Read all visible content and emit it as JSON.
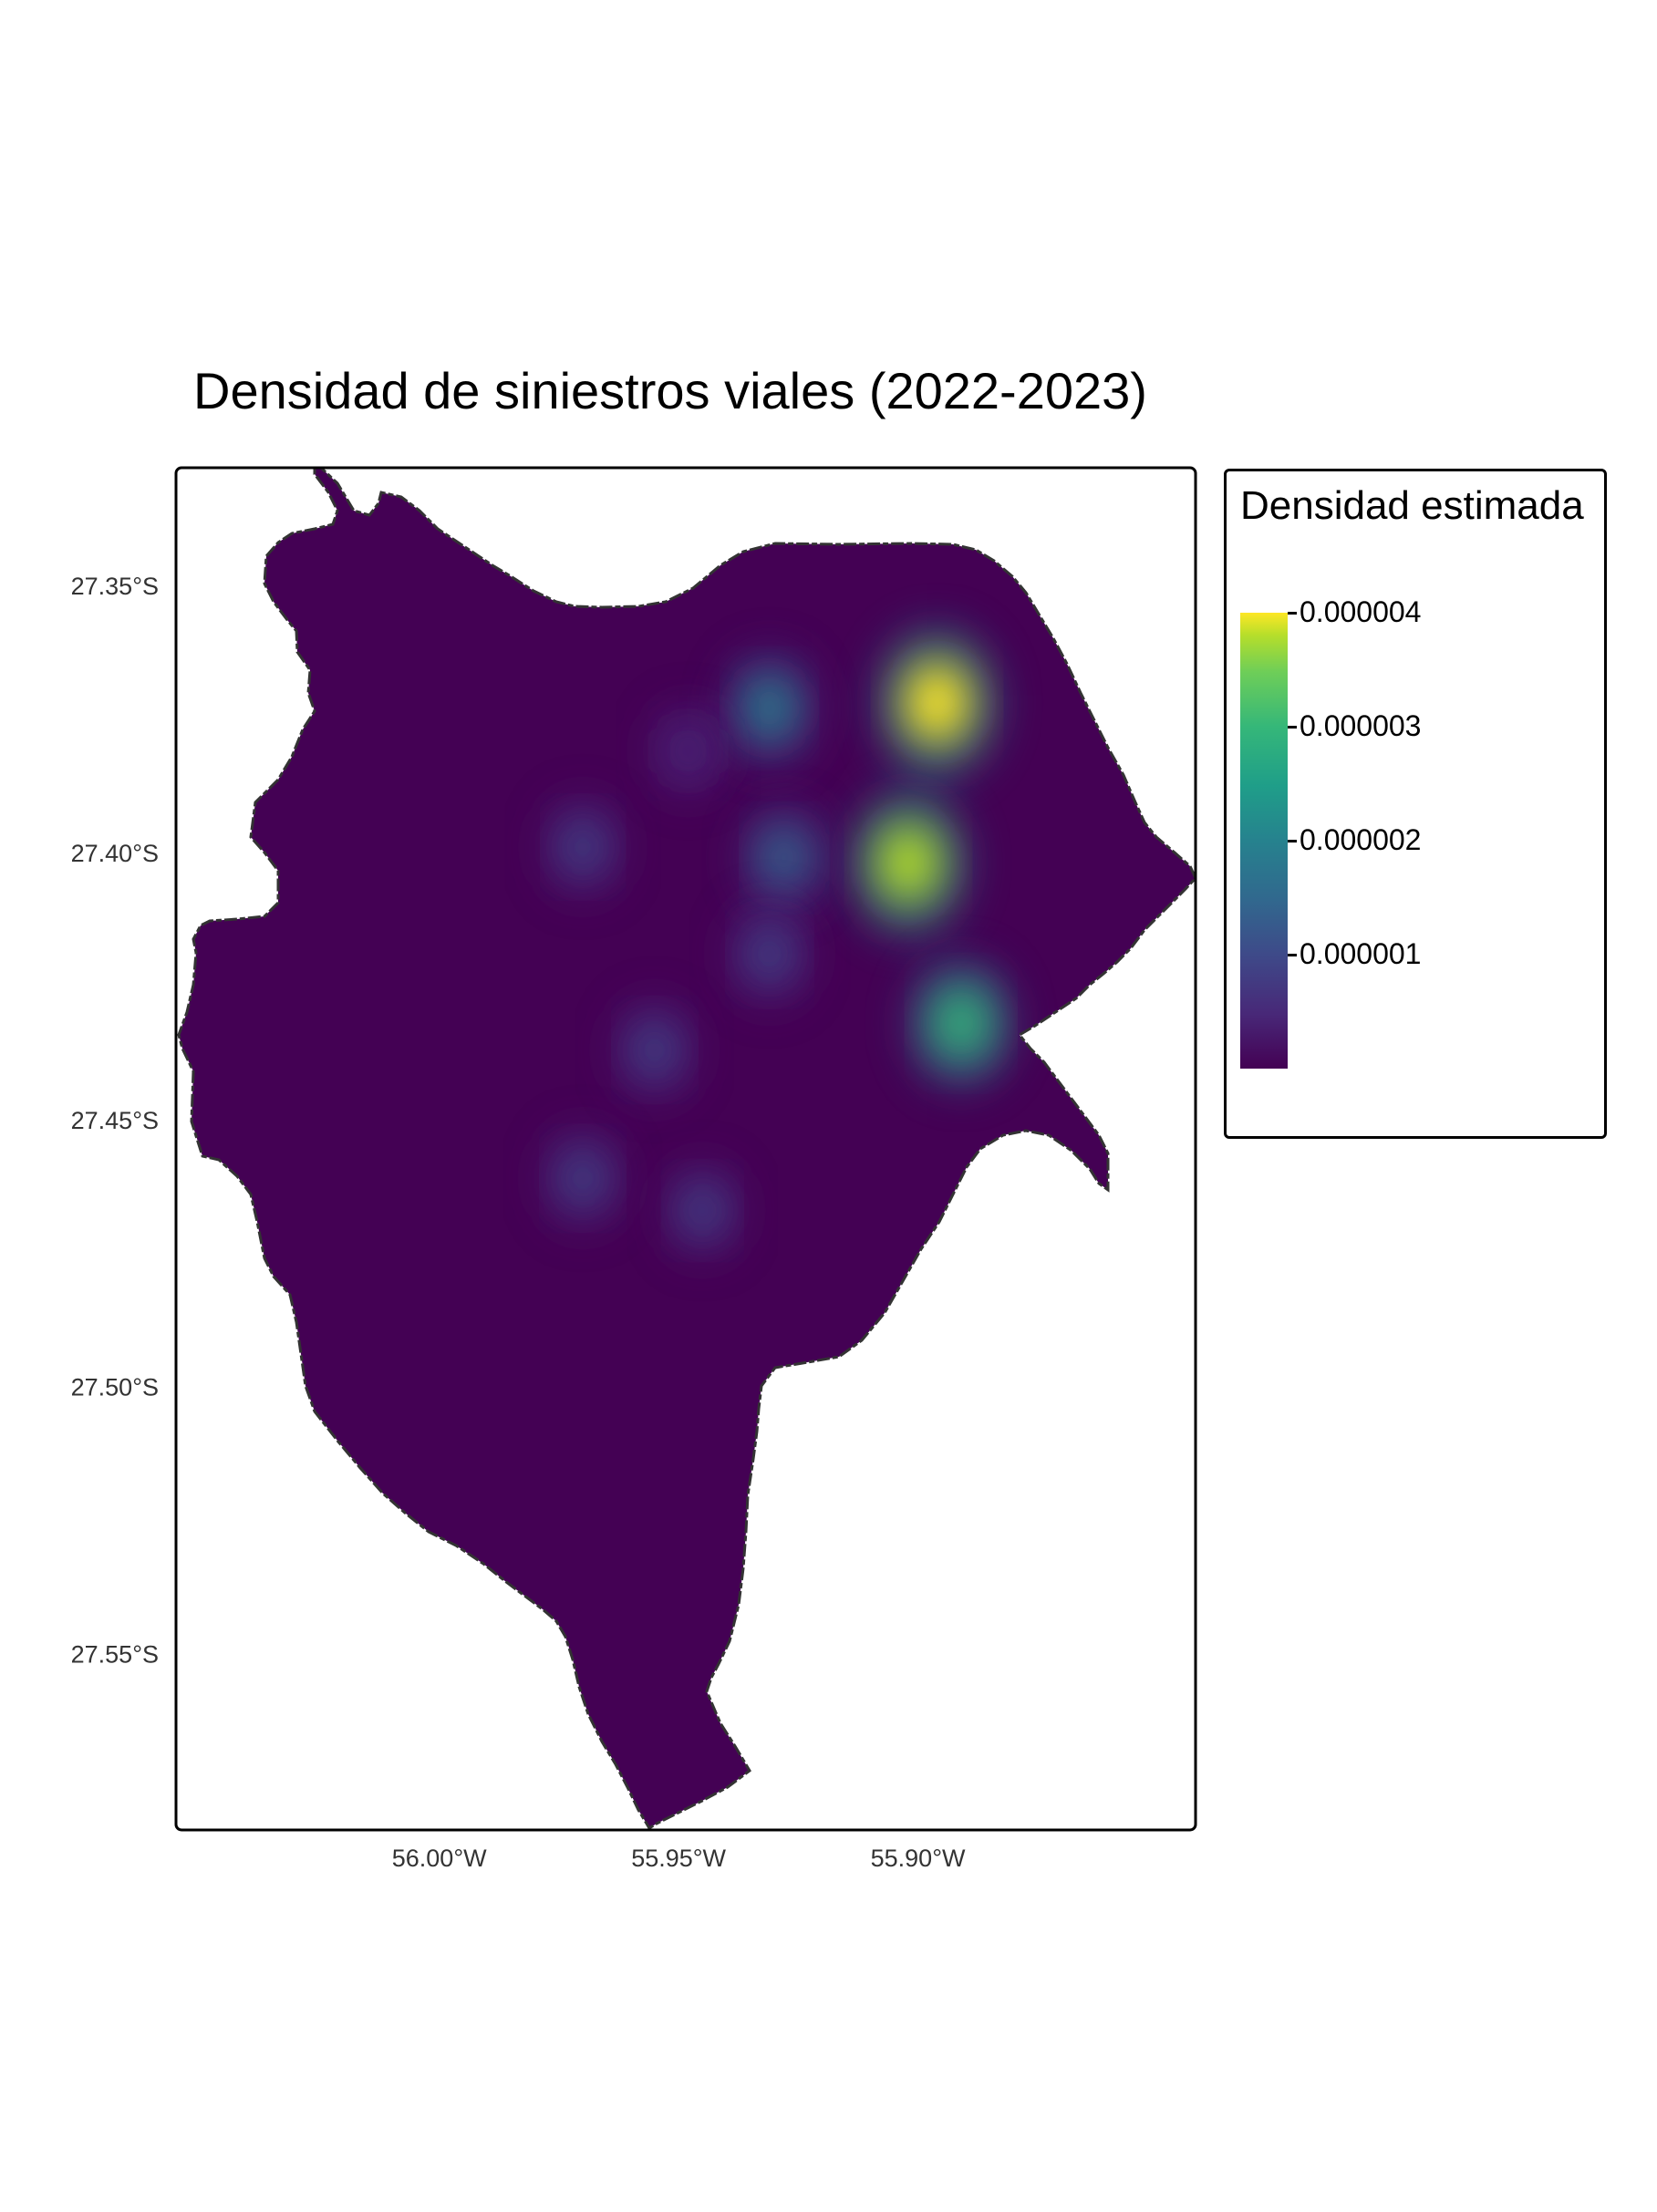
{
  "title": "Densidad de siniestros viales (2022-2023)",
  "legend": {
    "title": "Densidad estimada",
    "ticks": [
      {
        "label": "0.000004",
        "value": 4e-06
      },
      {
        "label": "0.000003",
        "value": 3e-06
      },
      {
        "label": "0.000002",
        "value": 2e-06
      },
      {
        "label": "0.000001",
        "value": 1e-06
      }
    ],
    "range": [
      0,
      4e-06
    ],
    "palette": "viridis",
    "colors": [
      "#440154",
      "#3e4a89",
      "#26828e",
      "#35b779",
      "#fde725"
    ]
  },
  "axes": {
    "y_ticks": [
      "27.35°S",
      "27.40°S",
      "27.45°S",
      "27.50°S",
      "27.55°S"
    ],
    "x_ticks": [
      "56.00°W",
      "55.95°W",
      "55.90°W"
    ]
  },
  "chart_data": {
    "type": "heatmap",
    "title": "Densidad de siniestros viales (2022-2023)",
    "legend_title": "Densidad estimada",
    "legend_placement": "right",
    "x_ticks": [
      -56.0,
      -55.95,
      -55.9
    ],
    "y_ticks": [
      -27.35,
      -27.4,
      -27.45,
      -27.5,
      -27.55
    ],
    "xlim": [
      -56.055,
      -55.842
    ],
    "ylim": [
      -27.583,
      -27.328
    ],
    "color_range": [
      0,
      4e-06
    ],
    "hotspots": [
      {
        "lon": -55.896,
        "lat": -27.372,
        "density": 4e-06
      },
      {
        "lon": -55.902,
        "lat": -27.402,
        "density": 3.7e-06
      },
      {
        "lon": -55.891,
        "lat": -27.432,
        "density": 2.7e-06
      },
      {
        "lon": -55.931,
        "lat": -27.373,
        "density": 1.8e-06
      },
      {
        "lon": -55.928,
        "lat": -27.401,
        "density": 1.2e-06
      },
      {
        "lon": -55.931,
        "lat": -27.419,
        "density": 1.1e-06
      },
      {
        "lon": -55.955,
        "lat": -27.437,
        "density": 1e-06
      },
      {
        "lon": -55.97,
        "lat": -27.399,
        "density": 9e-07
      },
      {
        "lon": -55.97,
        "lat": -27.461,
        "density": 1e-06
      },
      {
        "lon": -55.945,
        "lat": -27.467,
        "density": 7e-07
      },
      {
        "lon": -55.948,
        "lat": -27.381,
        "density": 5e-07
      }
    ]
  }
}
